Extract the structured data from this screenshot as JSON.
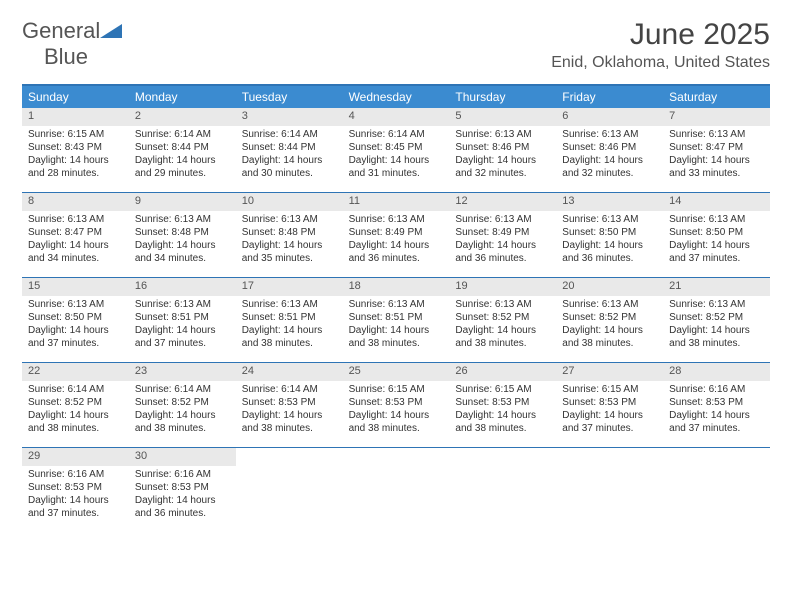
{
  "brand": {
    "general": "General",
    "blue": "Blue"
  },
  "title": "June 2025",
  "location": "Enid, Oklahoma, United States",
  "colors": {
    "header_bg": "#3b8bd0",
    "header_text": "#ffffff",
    "rule": "#2e74b5",
    "daynum_bg": "#e9e9e9",
    "text": "#333333",
    "brand_blue": "#2e74b5"
  },
  "weekdays": [
    "Sunday",
    "Monday",
    "Tuesday",
    "Wednesday",
    "Thursday",
    "Friday",
    "Saturday"
  ],
  "weeks": [
    [
      {
        "n": "1",
        "sr": "Sunrise: 6:15 AM",
        "ss": "Sunset: 8:43 PM",
        "d1": "Daylight: 14 hours",
        "d2": "and 28 minutes."
      },
      {
        "n": "2",
        "sr": "Sunrise: 6:14 AM",
        "ss": "Sunset: 8:44 PM",
        "d1": "Daylight: 14 hours",
        "d2": "and 29 minutes."
      },
      {
        "n": "3",
        "sr": "Sunrise: 6:14 AM",
        "ss": "Sunset: 8:44 PM",
        "d1": "Daylight: 14 hours",
        "d2": "and 30 minutes."
      },
      {
        "n": "4",
        "sr": "Sunrise: 6:14 AM",
        "ss": "Sunset: 8:45 PM",
        "d1": "Daylight: 14 hours",
        "d2": "and 31 minutes."
      },
      {
        "n": "5",
        "sr": "Sunrise: 6:13 AM",
        "ss": "Sunset: 8:46 PM",
        "d1": "Daylight: 14 hours",
        "d2": "and 32 minutes."
      },
      {
        "n": "6",
        "sr": "Sunrise: 6:13 AM",
        "ss": "Sunset: 8:46 PM",
        "d1": "Daylight: 14 hours",
        "d2": "and 32 minutes."
      },
      {
        "n": "7",
        "sr": "Sunrise: 6:13 AM",
        "ss": "Sunset: 8:47 PM",
        "d1": "Daylight: 14 hours",
        "d2": "and 33 minutes."
      }
    ],
    [
      {
        "n": "8",
        "sr": "Sunrise: 6:13 AM",
        "ss": "Sunset: 8:47 PM",
        "d1": "Daylight: 14 hours",
        "d2": "and 34 minutes."
      },
      {
        "n": "9",
        "sr": "Sunrise: 6:13 AM",
        "ss": "Sunset: 8:48 PM",
        "d1": "Daylight: 14 hours",
        "d2": "and 34 minutes."
      },
      {
        "n": "10",
        "sr": "Sunrise: 6:13 AM",
        "ss": "Sunset: 8:48 PM",
        "d1": "Daylight: 14 hours",
        "d2": "and 35 minutes."
      },
      {
        "n": "11",
        "sr": "Sunrise: 6:13 AM",
        "ss": "Sunset: 8:49 PM",
        "d1": "Daylight: 14 hours",
        "d2": "and 36 minutes."
      },
      {
        "n": "12",
        "sr": "Sunrise: 6:13 AM",
        "ss": "Sunset: 8:49 PM",
        "d1": "Daylight: 14 hours",
        "d2": "and 36 minutes."
      },
      {
        "n": "13",
        "sr": "Sunrise: 6:13 AM",
        "ss": "Sunset: 8:50 PM",
        "d1": "Daylight: 14 hours",
        "d2": "and 36 minutes."
      },
      {
        "n": "14",
        "sr": "Sunrise: 6:13 AM",
        "ss": "Sunset: 8:50 PM",
        "d1": "Daylight: 14 hours",
        "d2": "and 37 minutes."
      }
    ],
    [
      {
        "n": "15",
        "sr": "Sunrise: 6:13 AM",
        "ss": "Sunset: 8:50 PM",
        "d1": "Daylight: 14 hours",
        "d2": "and 37 minutes."
      },
      {
        "n": "16",
        "sr": "Sunrise: 6:13 AM",
        "ss": "Sunset: 8:51 PM",
        "d1": "Daylight: 14 hours",
        "d2": "and 37 minutes."
      },
      {
        "n": "17",
        "sr": "Sunrise: 6:13 AM",
        "ss": "Sunset: 8:51 PM",
        "d1": "Daylight: 14 hours",
        "d2": "and 38 minutes."
      },
      {
        "n": "18",
        "sr": "Sunrise: 6:13 AM",
        "ss": "Sunset: 8:51 PM",
        "d1": "Daylight: 14 hours",
        "d2": "and 38 minutes."
      },
      {
        "n": "19",
        "sr": "Sunrise: 6:13 AM",
        "ss": "Sunset: 8:52 PM",
        "d1": "Daylight: 14 hours",
        "d2": "and 38 minutes."
      },
      {
        "n": "20",
        "sr": "Sunrise: 6:13 AM",
        "ss": "Sunset: 8:52 PM",
        "d1": "Daylight: 14 hours",
        "d2": "and 38 minutes."
      },
      {
        "n": "21",
        "sr": "Sunrise: 6:13 AM",
        "ss": "Sunset: 8:52 PM",
        "d1": "Daylight: 14 hours",
        "d2": "and 38 minutes."
      }
    ],
    [
      {
        "n": "22",
        "sr": "Sunrise: 6:14 AM",
        "ss": "Sunset: 8:52 PM",
        "d1": "Daylight: 14 hours",
        "d2": "and 38 minutes."
      },
      {
        "n": "23",
        "sr": "Sunrise: 6:14 AM",
        "ss": "Sunset: 8:52 PM",
        "d1": "Daylight: 14 hours",
        "d2": "and 38 minutes."
      },
      {
        "n": "24",
        "sr": "Sunrise: 6:14 AM",
        "ss": "Sunset: 8:53 PM",
        "d1": "Daylight: 14 hours",
        "d2": "and 38 minutes."
      },
      {
        "n": "25",
        "sr": "Sunrise: 6:15 AM",
        "ss": "Sunset: 8:53 PM",
        "d1": "Daylight: 14 hours",
        "d2": "and 38 minutes."
      },
      {
        "n": "26",
        "sr": "Sunrise: 6:15 AM",
        "ss": "Sunset: 8:53 PM",
        "d1": "Daylight: 14 hours",
        "d2": "and 38 minutes."
      },
      {
        "n": "27",
        "sr": "Sunrise: 6:15 AM",
        "ss": "Sunset: 8:53 PM",
        "d1": "Daylight: 14 hours",
        "d2": "and 37 minutes."
      },
      {
        "n": "28",
        "sr": "Sunrise: 6:16 AM",
        "ss": "Sunset: 8:53 PM",
        "d1": "Daylight: 14 hours",
        "d2": "and 37 minutes."
      }
    ],
    [
      {
        "n": "29",
        "sr": "Sunrise: 6:16 AM",
        "ss": "Sunset: 8:53 PM",
        "d1": "Daylight: 14 hours",
        "d2": "and 37 minutes."
      },
      {
        "n": "30",
        "sr": "Sunrise: 6:16 AM",
        "ss": "Sunset: 8:53 PM",
        "d1": "Daylight: 14 hours",
        "d2": "and 36 minutes."
      },
      null,
      null,
      null,
      null,
      null
    ]
  ]
}
